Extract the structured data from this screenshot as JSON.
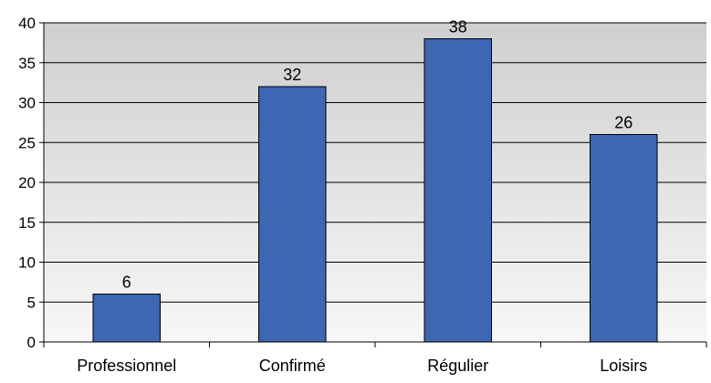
{
  "chart_data": {
    "type": "bar",
    "title": "",
    "xlabel": "",
    "ylabel": "",
    "categories": [
      "Professionnel",
      "Confirmé",
      "Régulier",
      "Loisirs"
    ],
    "values": [
      6,
      32,
      38,
      26
    ],
    "data_labels": [
      "6",
      "32",
      "38",
      "26"
    ],
    "ylim": [
      0,
      40
    ],
    "yticks": [
      0,
      5,
      10,
      15,
      20,
      25,
      30,
      35,
      40
    ],
    "grid": true,
    "legend": "none",
    "colors": {
      "bar_fill": "#3D66B3",
      "bar_stroke": "#000000",
      "plot_background": "#D6D6D6",
      "gridline": "#000000"
    }
  }
}
